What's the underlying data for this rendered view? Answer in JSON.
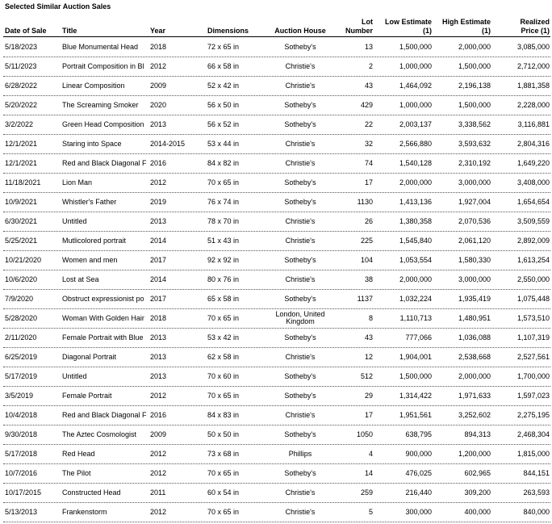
{
  "header": {
    "title": "Selected Similar Auction Sales"
  },
  "table": {
    "columns": [
      "Date of Sale",
      "Title",
      "Year",
      "Dimensions",
      "Auction House",
      "Lot Number",
      "Low Estimate (1)",
      "High Estimate (1)",
      "Realized Price (1)"
    ],
    "rows": [
      [
        "5/18/2023",
        "Blue Monumental Head",
        "2018",
        "72 x 65 in",
        "Sotheby's",
        "13",
        "1,500,000",
        "2,000,000",
        "3,085,000"
      ],
      [
        "5/11/2023",
        "Portrait Composition in Bl",
        "2012",
        "66 x 58 in",
        "Christie's",
        "2",
        "1,000,000",
        "1,500,000",
        "2,712,000"
      ],
      [
        "6/28/2022",
        "Linear Composition",
        "2009",
        "52 x 42 in",
        "Christie's",
        "43",
        "1,464,092",
        "2,196,138",
        "1,881,358"
      ],
      [
        "5/20/2022",
        "The Screaming Smoker",
        "2020",
        "56 x 50 in",
        "Sotheby's",
        "429",
        "1,000,000",
        "1,500,000",
        "2,228,000"
      ],
      [
        "3/2/2022",
        "Green Head Composition",
        "2013",
        "56 x 52 in",
        "Sotheby's",
        "22",
        "2,003,137",
        "3,338,562",
        "3,116,881"
      ],
      [
        "12/1/2021",
        "Staring into Space",
        "2014-2015",
        "53 x 44 in",
        "Christie's",
        "32",
        "2,566,880",
        "3,593,632",
        "2,804,316"
      ],
      [
        "12/1/2021",
        "Red and Black Diagonal F",
        "2016",
        "84 x 82 in",
        "Christie's",
        "74",
        "1,540,128",
        "2,310,192",
        "1,649,220"
      ],
      [
        "11/18/2021",
        "Lion Man",
        "2012",
        "70 x 65 in",
        "Sotheby's",
        "17",
        "2,000,000",
        "3,000,000",
        "3,408,000"
      ],
      [
        "10/9/2021",
        "Whistler's Father",
        "2019",
        "76 x 74 in",
        "Sotheby's",
        "1130",
        "1,413,136",
        "1,927,004",
        "1,654,654"
      ],
      [
        "6/30/2021",
        "Untitled",
        "2013",
        "78 x 70 in",
        "Christie's",
        "26",
        "1,380,358",
        "2,070,536",
        "3,509,559"
      ],
      [
        "5/25/2021",
        "Mutlicolored portrait",
        "2014",
        "51 x 43 in",
        "Christie's",
        "225",
        "1,545,840",
        "2,061,120",
        "2,892,009"
      ],
      [
        "10/21/2020",
        "Women and men",
        "2017",
        "92 x 92 in",
        "Sotheby's",
        "104",
        "1,053,554",
        "1,580,330",
        "1,613,254"
      ],
      [
        "10/6/2020",
        "Lost at Sea",
        "2014",
        "80 x 76 in",
        "Christie's",
        "38",
        "2,000,000",
        "3,000,000",
        "2,550,000"
      ],
      [
        "7/9/2020",
        "Obstruct expressionist po",
        "2017",
        "65 x 58 in",
        "Sotheby's",
        "1137",
        "1,032,224",
        "1,935,419",
        "1,075,448"
      ],
      [
        "5/28/2020",
        "Woman With Golden Hair",
        "2018",
        "70 x 65 in",
        "London, United Kingdom",
        "8",
        "1,110,713",
        "1,480,951",
        "1,573,510"
      ],
      [
        "2/11/2020",
        "Female Portrait with Blue",
        "2013",
        "53 x 42 in",
        "Sotheby's",
        "43",
        "777,066",
        "1,036,088",
        "1,107,319"
      ],
      [
        "6/25/2019",
        "Diagonal Portrait",
        "2013",
        "62 x 58 in",
        "Christie's",
        "12",
        "1,904,001",
        "2,538,668",
        "2,527,561"
      ],
      [
        "5/17/2019",
        "Untitled",
        "2013",
        "70 x 60 in",
        "Sotheby's",
        "512",
        "1,500,000",
        "2,000,000",
        "1,700,000"
      ],
      [
        "3/5/2019",
        "Female Portrait",
        "2012",
        "70 x 65 in",
        "Sotheby's",
        "29",
        "1,314,422",
        "1,971,633",
        "1,597,023"
      ],
      [
        "10/4/2018",
        "Red and Black Diagonal F",
        "2016",
        "84 x 83 in",
        "Christie's",
        "17",
        "1,951,561",
        "3,252,602",
        "2,275,195"
      ],
      [
        "9/30/2018",
        "The Aztec Cosmologist",
        "2009",
        "50 x 50 in",
        "Sotheby's",
        "1050",
        "638,795",
        "894,313",
        "2,468,304"
      ],
      [
        "5/17/2018",
        "Red Head",
        "2012",
        "73 x 68 in",
        "Phillips",
        "4",
        "900,000",
        "1,200,000",
        "1,815,000"
      ],
      [
        "10/7/2016",
        "The Pilot",
        "2012",
        "70 x 65 in",
        "Sotheby's",
        "14",
        "476,025",
        "602,965",
        "844,151"
      ],
      [
        "10/17/2015",
        "Constructed Head",
        "2011",
        "60 x 54 in",
        "Christie's",
        "259",
        "216,440",
        "309,200",
        "263,593"
      ],
      [
        "5/13/2013",
        "Frankenstorm",
        "2012",
        "70 x 65 in",
        "Christie's",
        "5",
        "300,000",
        "400,000",
        "840,000"
      ]
    ]
  }
}
